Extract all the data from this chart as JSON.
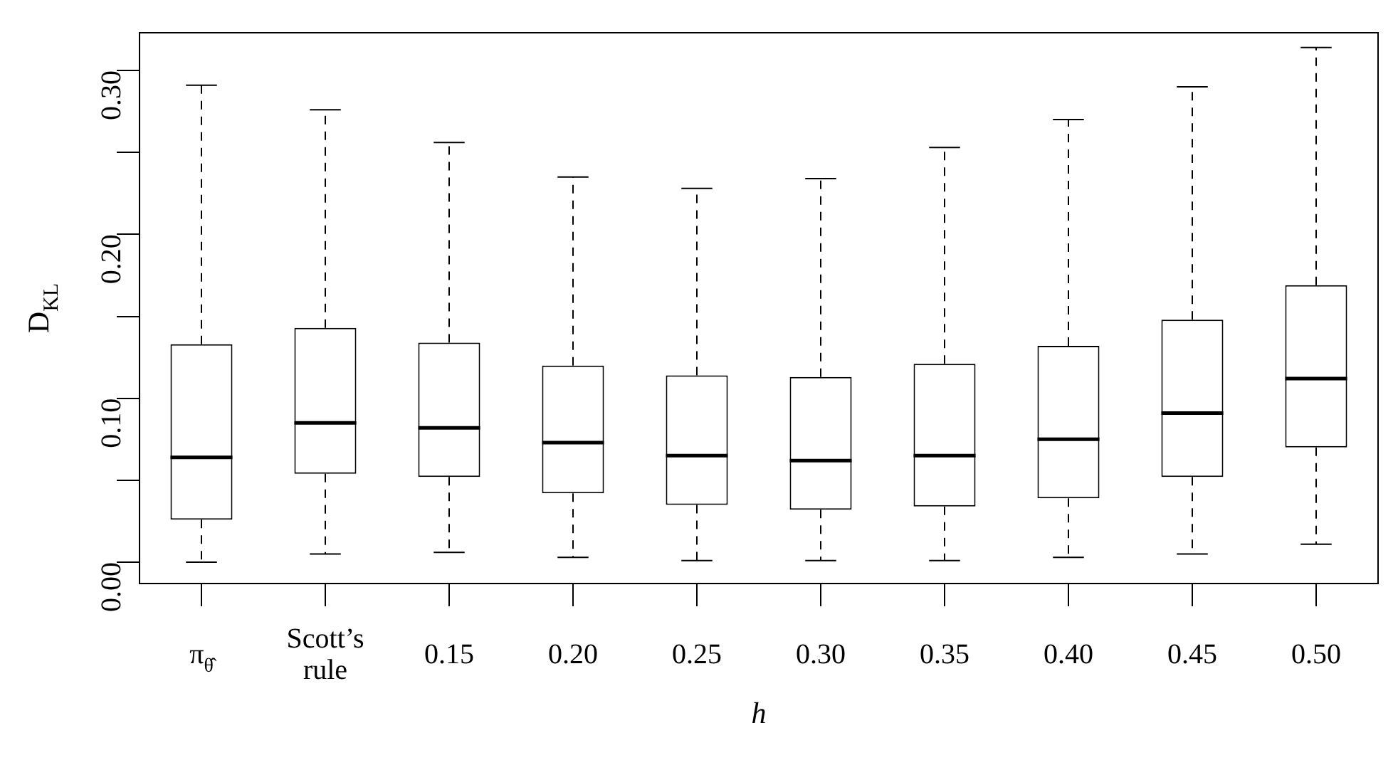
{
  "chart_data": {
    "type": "box",
    "xlabel": "h",
    "ylabel": "D$_{KL}$",
    "categories": [
      "π$_{θ̂}$",
      "Scott’s rule",
      "0.15",
      "0.20",
      "0.25",
      "0.30",
      "0.35",
      "0.40",
      "0.45",
      "0.50"
    ],
    "boxes": [
      {
        "low": 0.0,
        "q1": 0.026,
        "median": 0.064,
        "q3": 0.133,
        "high": 0.291
      },
      {
        "low": 0.005,
        "q1": 0.054,
        "median": 0.085,
        "q3": 0.143,
        "high": 0.276
      },
      {
        "low": 0.006,
        "q1": 0.052,
        "median": 0.082,
        "q3": 0.134,
        "high": 0.256
      },
      {
        "low": 0.003,
        "q1": 0.042,
        "median": 0.073,
        "q3": 0.12,
        "high": 0.235
      },
      {
        "low": 0.001,
        "q1": 0.035,
        "median": 0.065,
        "q3": 0.114,
        "high": 0.228
      },
      {
        "low": 0.001,
        "q1": 0.032,
        "median": 0.062,
        "q3": 0.113,
        "high": 0.234
      },
      {
        "low": 0.001,
        "q1": 0.034,
        "median": 0.065,
        "q3": 0.121,
        "high": 0.253
      },
      {
        "low": 0.003,
        "q1": 0.039,
        "median": 0.075,
        "q3": 0.132,
        "high": 0.27
      },
      {
        "low": 0.005,
        "q1": 0.052,
        "median": 0.091,
        "q3": 0.148,
        "high": 0.29
      },
      {
        "low": 0.011,
        "q1": 0.07,
        "median": 0.112,
        "q3": 0.169,
        "high": 0.314
      }
    ],
    "color": "#000000",
    "ylim": [
      -0.013,
      0.323
    ],
    "yticks": [
      {
        "value": 0,
        "label": "0.00"
      },
      {
        "value": 0.05,
        "label": null
      },
      {
        "value": 0.1,
        "label": "0.10"
      },
      {
        "value": 0.15,
        "label": null
      },
      {
        "value": 0.2,
        "label": "0.20"
      },
      {
        "value": 0.25,
        "label": null
      },
      {
        "value": 0.3,
        "label": "0.30"
      }
    ],
    "grid": false,
    "legend": false
  }
}
